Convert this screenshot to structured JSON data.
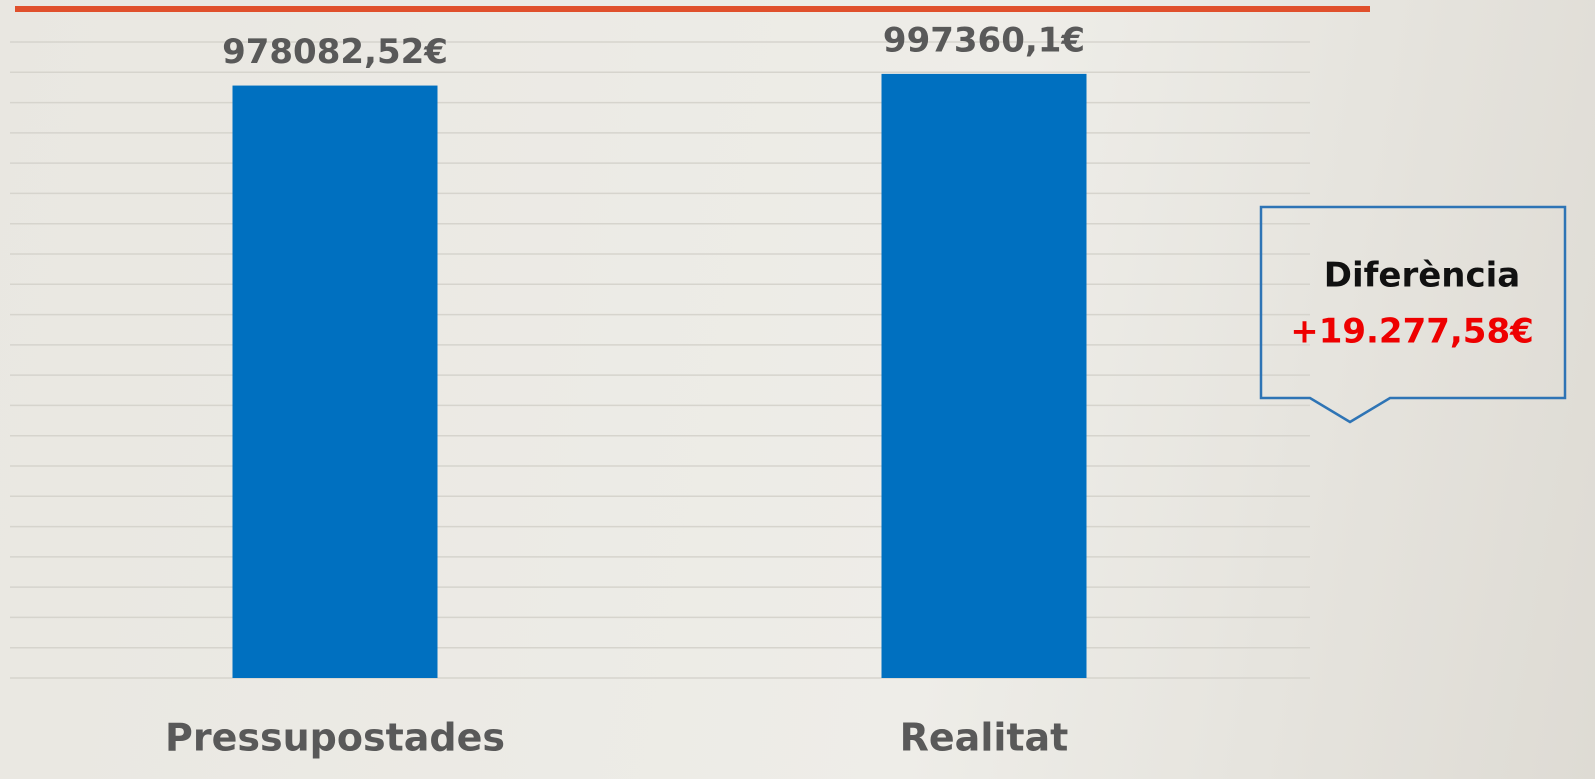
{
  "chart_data": {
    "type": "bar",
    "categories": [
      "Pressupostades",
      "Realitat"
    ],
    "values": [
      978082.52,
      997360.1
    ],
    "value_labels": [
      "978082,52€",
      "997360,1€"
    ],
    "color": "#0070c0",
    "ylim": [
      0,
      1050000
    ],
    "yticks": [
      0,
      50000,
      100000,
      150000,
      200000,
      250000,
      300000,
      350000,
      400000,
      450000,
      500000,
      550000,
      600000,
      650000,
      700000,
      750000,
      800000,
      850000,
      900000,
      950000,
      1000000,
      1050000
    ],
    "grid": true,
    "annotation": {
      "title": "Diferència",
      "text": "+19.277,58€"
    }
  }
}
